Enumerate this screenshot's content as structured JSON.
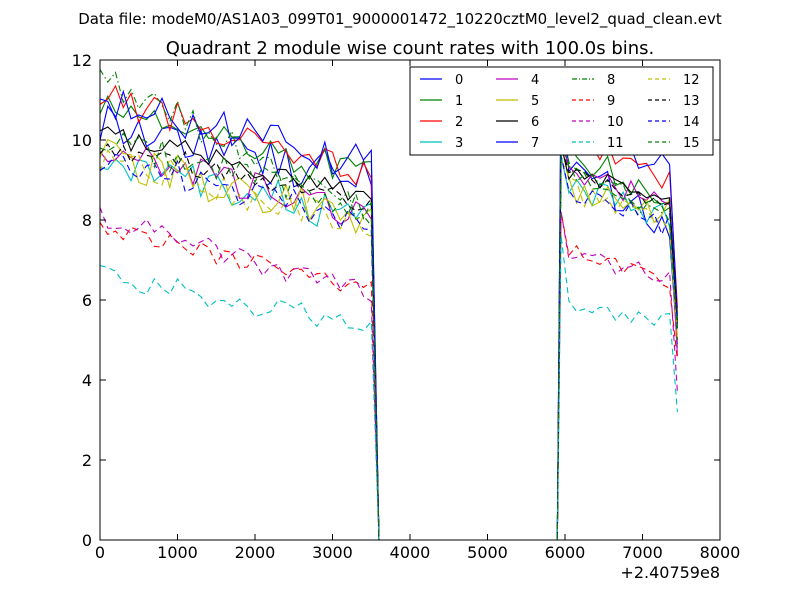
{
  "figure": {
    "suptitle": "Data file: modeM0/AS1A03_099T01_9000001472_10220cztM0_level2_quad_clean.evt"
  },
  "chart_data": {
    "type": "line",
    "title": "Quadrant 2 module wise count rates with 100.0s bins.",
    "xlabel": "",
    "ylabel": "",
    "x_offset_label": "+2.40759e8",
    "xlim": [
      0,
      8000
    ],
    "ylim": [
      0,
      12
    ],
    "xticks": [
      0,
      1000,
      2000,
      3000,
      4000,
      5000,
      6000,
      7000,
      8000
    ],
    "yticks": [
      0,
      2,
      4,
      6,
      8,
      10,
      12
    ],
    "legend_position": "top-right",
    "legend_columns": 4,
    "segments": {
      "a": {
        "x_start": 0,
        "x_step": 100,
        "count": 36
      },
      "gap": [
        3600,
        5900
      ],
      "b": {
        "x_start": 5950,
        "x_step": 100,
        "count": 16
      }
    },
    "series": [
      {
        "name": "0",
        "color": "#0000ff",
        "dash": "solid",
        "a_start": 10.5,
        "a_end": 8.9,
        "a_noise": 0.6,
        "b_level": 9.4,
        "b_end": 7.6,
        "b_peak": 11.6,
        "tail": 4.9
      },
      {
        "name": "1",
        "color": "#008000",
        "dash": "solid",
        "a_start": 11.0,
        "a_end": 9.0,
        "a_noise": 0.5,
        "b_level": 9.8,
        "b_end": 8.2,
        "b_peak": 10.3,
        "tail": 5.4
      },
      {
        "name": "2",
        "color": "#ff0000",
        "dash": "solid",
        "a_start": 11.1,
        "a_end": 9.1,
        "a_noise": 0.4,
        "b_level": 10.1,
        "b_end": 8.8,
        "b_peak": 10.7,
        "tail": 5.8
      },
      {
        "name": "3",
        "color": "#00bfbf",
        "dash": "solid",
        "a_start": 9.5,
        "a_end": 8.0,
        "a_noise": 0.5,
        "b_level": 8.9,
        "b_end": 7.9,
        "b_peak": 9.6,
        "tail": 4.8
      },
      {
        "name": "4",
        "color": "#bf00bf",
        "dash": "solid",
        "a_start": 9.8,
        "a_end": 8.1,
        "a_noise": 0.4,
        "b_level": 9.3,
        "b_end": 8.2,
        "b_peak": 10.0,
        "tail": 4.6
      },
      {
        "name": "5",
        "color": "#bfbf00",
        "dash": "solid",
        "a_start": 9.6,
        "a_end": 7.9,
        "a_noise": 0.5,
        "b_level": 8.8,
        "b_end": 8.1,
        "b_peak": 9.9,
        "tail": 5.0
      },
      {
        "name": "6",
        "color": "#000000",
        "dash": "solid",
        "a_start": 10.2,
        "a_end": 8.6,
        "a_noise": 0.3,
        "b_level": 9.2,
        "b_end": 8.6,
        "b_peak": 9.9,
        "tail": 5.3
      },
      {
        "name": "7",
        "color": "#0000ff",
        "dash": "solid",
        "a_start": 10.9,
        "a_end": 9.4,
        "a_noise": 0.5,
        "b_level": 10.2,
        "b_end": 9.2,
        "b_peak": 11.6,
        "tail": 5.6
      },
      {
        "name": "8",
        "color": "#008000",
        "dash": "dashdot",
        "a_start": 11.6,
        "a_end": 8.0,
        "a_noise": 0.4,
        "b_level": 9.3,
        "b_end": 7.9,
        "b_peak": 10.3,
        "tail": 5.0
      },
      {
        "name": "9",
        "color": "#ff0000",
        "dash": "dashed",
        "a_start": 7.8,
        "a_end": 6.3,
        "a_noise": 0.25,
        "b_level": 7.3,
        "b_end": 6.3,
        "b_peak": 8.2,
        "tail": 4.5
      },
      {
        "name": "10",
        "color": "#bf00bf",
        "dash": "dashed",
        "a_start": 8.1,
        "a_end": 6.1,
        "a_noise": 0.3,
        "b_level": 7.1,
        "b_end": 6.6,
        "b_peak": 8.2,
        "tail": 3.7
      },
      {
        "name": "11",
        "color": "#00bfbf",
        "dash": "dashed",
        "a_start": 6.6,
        "a_end": 5.3,
        "a_noise": 0.3,
        "b_level": 5.9,
        "b_end": 5.4,
        "b_peak": 7.6,
        "tail": 3.2
      },
      {
        "name": "12",
        "color": "#bfbf00",
        "dash": "dashed",
        "a_start": 9.6,
        "a_end": 7.8,
        "a_noise": 0.4,
        "b_level": 8.8,
        "b_end": 7.8,
        "b_peak": 9.5,
        "tail": 5.1
      },
      {
        "name": "13",
        "color": "#000000",
        "dash": "dashed",
        "a_start": 9.9,
        "a_end": 8.4,
        "a_noise": 0.3,
        "b_level": 9.3,
        "b_end": 8.3,
        "b_peak": 9.9,
        "tail": 5.5
      },
      {
        "name": "14",
        "color": "#0000ff",
        "dash": "dashed",
        "a_start": 9.5,
        "a_end": 8.0,
        "a_noise": 0.4,
        "b_level": 8.7,
        "b_end": 7.8,
        "b_peak": 9.6,
        "tail": 5.2
      },
      {
        "name": "15",
        "color": "#008000",
        "dash": "dashed",
        "a_start": 10.0,
        "a_end": 8.3,
        "a_noise": 0.4,
        "b_level": 9.1,
        "b_end": 8.0,
        "b_peak": 10.1,
        "tail": 5.3
      }
    ]
  }
}
